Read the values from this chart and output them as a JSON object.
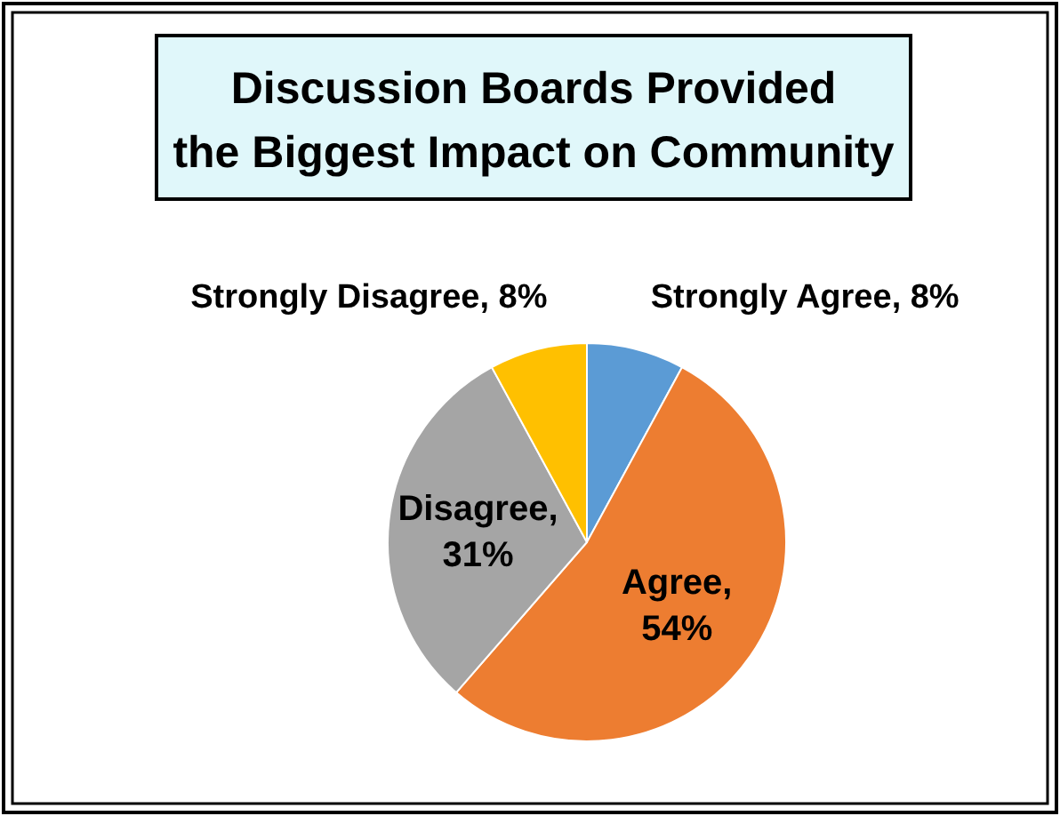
{
  "chart_data": {
    "type": "pie",
    "title": "Discussion Boards Provided the Biggest Impact on Community",
    "categories": [
      "Strongly Agree",
      "Agree",
      "Disagree",
      "Strongly Disagree"
    ],
    "values": [
      8,
      54,
      31,
      8
    ],
    "value_labels": [
      ", 8%",
      ", 54%",
      ", 31%",
      ", 8%"
    ],
    "colors": [
      "#5b9bd5",
      "#ed7d31",
      "#a5a5a5",
      "#ffc000"
    ]
  }
}
